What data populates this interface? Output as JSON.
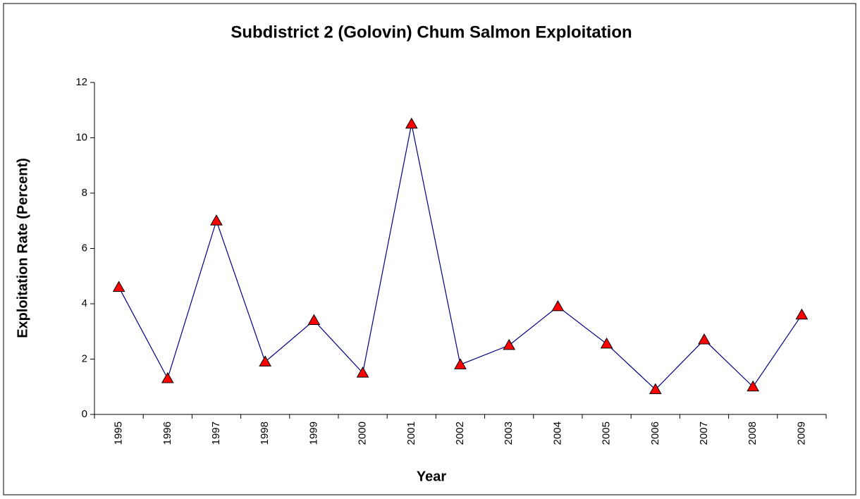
{
  "chart_data": {
    "type": "line",
    "title": "Subdistrict 2 (Golovin) Chum Salmon Exploitation",
    "x_label": "Year",
    "y_label": "Exploitation Rate (Percent)",
    "categories": [
      "1995",
      "1996",
      "1997",
      "1998",
      "1999",
      "2000",
      "2001",
      "2002",
      "2003",
      "2004",
      "2005",
      "2006",
      "2007",
      "2008",
      "2009"
    ],
    "values": [
      4.6,
      1.3,
      7.0,
      1.9,
      3.4,
      1.5,
      10.5,
      1.8,
      2.5,
      3.9,
      2.55,
      0.9,
      2.7,
      1.0,
      3.6
    ],
    "color": "#000080",
    "marker_color": "#ff0000",
    "ylim": [
      0,
      12
    ],
    "yticks": [
      0,
      2,
      4,
      6,
      8,
      10,
      12
    ],
    "grid": false
  }
}
